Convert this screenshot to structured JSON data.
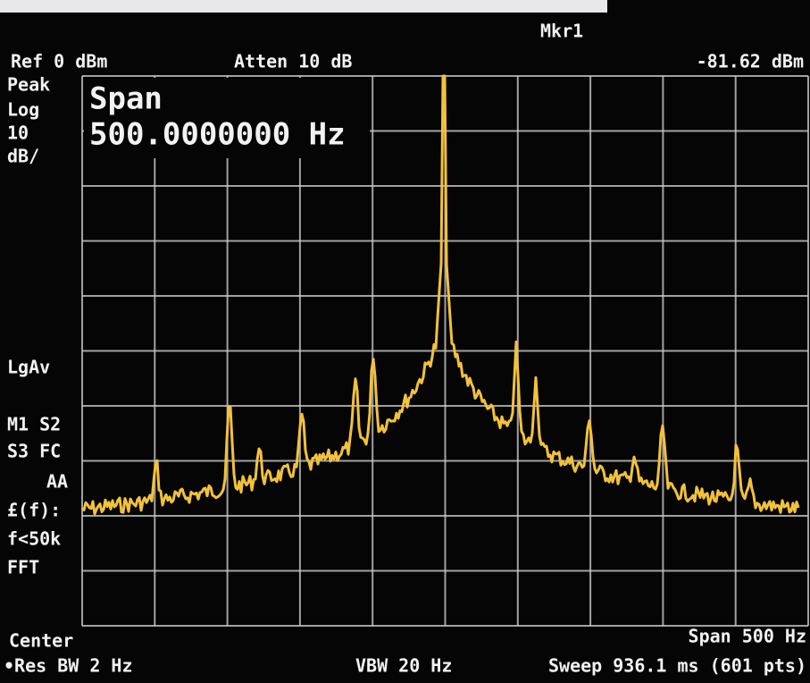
{
  "screen": {
    "marker": "Mkr1",
    "ref_level": "Ref 0 dBm",
    "attenuation": "Atten 10 dB",
    "marker_value": "-81.62 dBm",
    "span_box": {
      "label": "Span",
      "value": "500.0000000 Hz"
    },
    "side_labels": [
      "Peak",
      "Log",
      "10",
      "dB/",
      "LgAv",
      "M1 S2",
      "S3 FC",
      "AA",
      "£(f):",
      "f<50k",
      "FFT"
    ],
    "footer": {
      "center": "Center",
      "res_bw": "•Res BW 2 Hz",
      "vbw": "VBW 20 Hz",
      "span": "Span 500 Hz",
      "sweep": "Sweep 936.1 ms (601 pts)"
    }
  }
}
